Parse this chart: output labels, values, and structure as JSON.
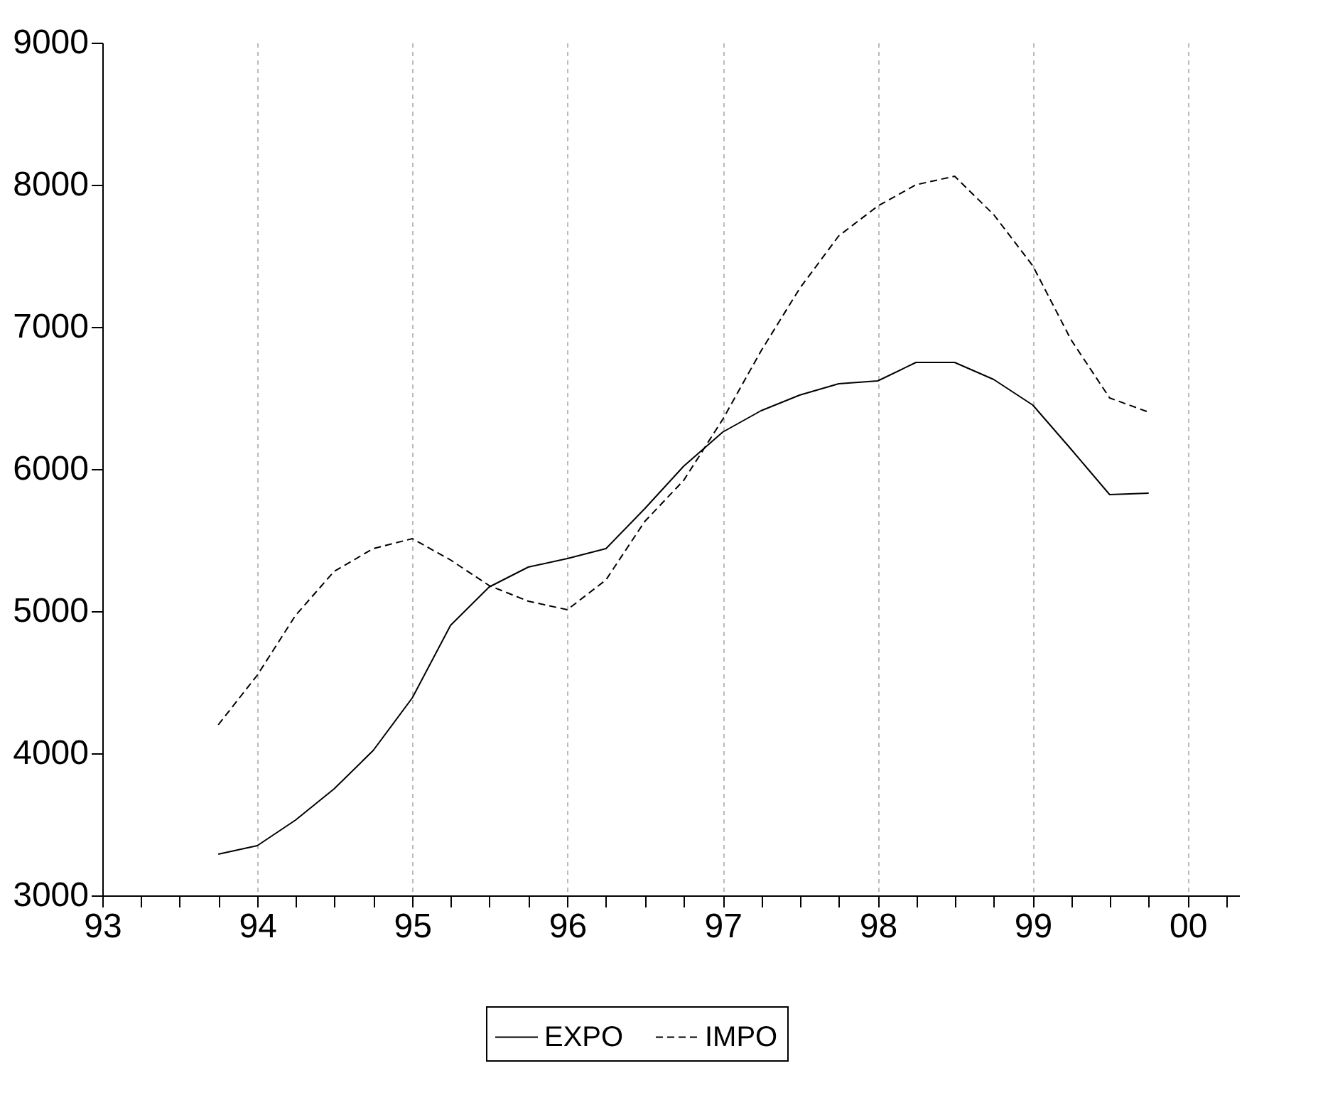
{
  "chart_data": {
    "type": "line",
    "x": [
      "1993-10",
      "1994-01",
      "1994-04",
      "1994-07",
      "1994-10",
      "1995-01",
      "1995-04",
      "1995-07",
      "1995-10",
      "1996-01",
      "1996-04",
      "1996-07",
      "1996-10",
      "1997-01",
      "1997-04",
      "1997-07",
      "1997-10",
      "1998-01",
      "1998-04",
      "1998-07",
      "1998-10",
      "1999-01",
      "1999-04",
      "1999-07",
      "1999-10"
    ],
    "series": [
      {
        "name": "EXPO",
        "color": "#000000",
        "line_style": "solid",
        "values": [
          3290,
          3350,
          3530,
          3750,
          4020,
          4390,
          4900,
          5170,
          5310,
          5370,
          5440,
          5720,
          6020,
          6260,
          6410,
          6520,
          6600,
          6620,
          6750,
          6750,
          6630,
          6450,
          6140,
          5820,
          5830
        ]
      },
      {
        "name": "IMPO",
        "color": "#000000",
        "line_style": "dashed",
        "values": [
          4200,
          4550,
          4970,
          5280,
          5440,
          5510,
          5360,
          5180,
          5070,
          5010,
          5220,
          5630,
          5920,
          6350,
          6830,
          7270,
          7640,
          7850,
          8000,
          8060,
          7790,
          7430,
          6910,
          6500,
          6400
        ]
      }
    ],
    "xlim": [
      "1993-01",
      "2000-05"
    ],
    "ylim": [
      3000,
      9000
    ],
    "xticks": [
      {
        "value": "1993-01",
        "label": "93"
      },
      {
        "value": "1993-04",
        "label": null
      },
      {
        "value": "1993-07",
        "label": null
      },
      {
        "value": "1993-10",
        "label": null
      },
      {
        "value": "1994-01",
        "label": "94"
      },
      {
        "value": "1994-04",
        "label": null
      },
      {
        "value": "1994-07",
        "label": null
      },
      {
        "value": "1994-10",
        "label": null
      },
      {
        "value": "1995-01",
        "label": "95"
      },
      {
        "value": "1995-04",
        "label": null
      },
      {
        "value": "1995-07",
        "label": null
      },
      {
        "value": "1995-10",
        "label": null
      },
      {
        "value": "1996-01",
        "label": "96"
      },
      {
        "value": "1996-04",
        "label": null
      },
      {
        "value": "1996-07",
        "label": null
      },
      {
        "value": "1996-10",
        "label": null
      },
      {
        "value": "1997-01",
        "label": "97"
      },
      {
        "value": "1997-04",
        "label": null
      },
      {
        "value": "1997-07",
        "label": null
      },
      {
        "value": "1997-10",
        "label": null
      },
      {
        "value": "1998-01",
        "label": "98"
      },
      {
        "value": "1998-04",
        "label": null
      },
      {
        "value": "1998-07",
        "label": null
      },
      {
        "value": "1998-10",
        "label": null
      },
      {
        "value": "1999-01",
        "label": "99"
      },
      {
        "value": "1999-04",
        "label": null
      },
      {
        "value": "1999-07",
        "label": null
      },
      {
        "value": "1999-10",
        "label": null
      },
      {
        "value": "2000-01",
        "label": "00"
      },
      {
        "value": "2000-04",
        "label": null
      }
    ],
    "yticks": [
      3000,
      4000,
      5000,
      6000,
      7000,
      8000,
      9000
    ],
    "grid": "x",
    "legend": "bottom",
    "marker": "none"
  }
}
